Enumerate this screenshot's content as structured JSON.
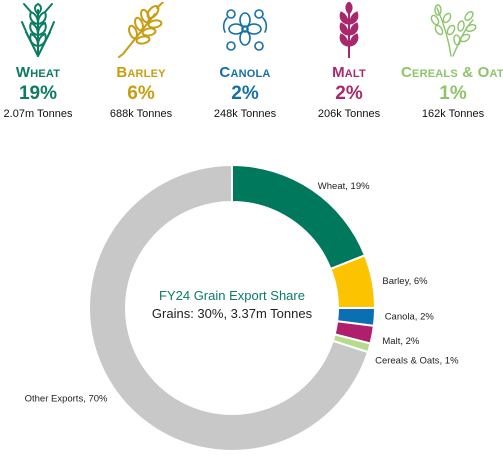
{
  "stats": [
    {
      "name": "Wheat",
      "pct": "19%",
      "tonnes": "2.07m Tonnes",
      "color": "#0b7c63",
      "icon": "wheat-icon"
    },
    {
      "name": "Barley",
      "pct": "6%",
      "tonnes": "688k Tonnes",
      "color": "#c99d11",
      "icon": "barley-icon"
    },
    {
      "name": "Canola",
      "pct": "2%",
      "tonnes": "248k Tonnes",
      "color": "#1570a6",
      "icon": "canola-flower-icon"
    },
    {
      "name": "Malt",
      "pct": "2%",
      "tonnes": "206k Tonnes",
      "color": "#a8286e",
      "icon": "malt-icon"
    },
    {
      "name": "Cereals & Oats",
      "pct": "1%",
      "tonnes": "162k Tonnes",
      "color": "#8cc46a",
      "icon": "cereals-oats-icon"
    }
  ],
  "chart_data": {
    "type": "pie",
    "variant": "donut",
    "center_title": "FY24 Grain Export Share",
    "center_subtitle": "Grains: 30%, 3.37m Tonnes",
    "slices": [
      {
        "label": "Wheat, 19%",
        "value": 19,
        "color": "#00785c"
      },
      {
        "label": "Barley, 6%",
        "value": 6,
        "color": "#fcc400"
      },
      {
        "label": "Canola, 2%",
        "value": 2,
        "color": "#0a6fb3"
      },
      {
        "label": "Malt, 2%",
        "value": 2,
        "color": "#b01f6b"
      },
      {
        "label": "Cereals & Oats, 1%",
        "value": 1,
        "color": "#b5db8c"
      },
      {
        "label": "Other Exports, 70%",
        "value": 70,
        "color": "#c8c8c8"
      }
    ]
  }
}
